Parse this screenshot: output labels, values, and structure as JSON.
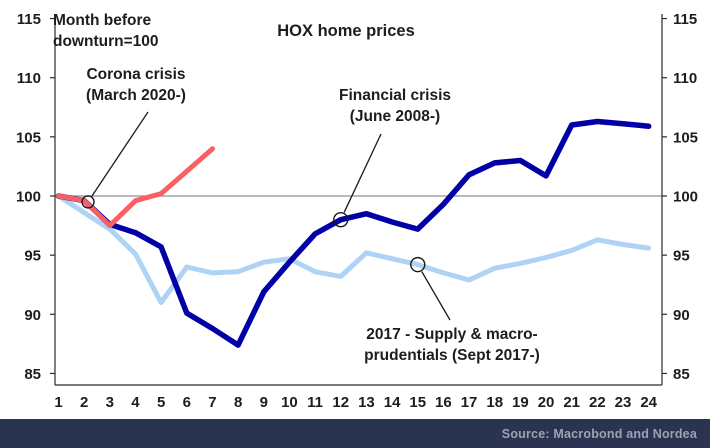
{
  "title": "HOX home prices",
  "annotations": {
    "index_note": {
      "text": "Month before\ndownturn=100"
    },
    "corona": {
      "text": "Corona crisis\n(March 2020-)"
    },
    "financial": {
      "text": "Financial crisis\n(June 2008-)"
    },
    "supply": {
      "text": "2017 - Supply & macro-\nprudentials (Sept 2017-)"
    }
  },
  "footer": {
    "source_label": "Source: Macrobond and Nordea"
  },
  "colors": {
    "corona_line": "#FA5F63",
    "financial_line": "#0000A6",
    "supply_line": "#AFD3F5",
    "grid": "#8F8F8F",
    "axis": "#2B2B2B",
    "text": "#1D1D1D",
    "leader": "#1A1A1A",
    "footer_bg": "#2A3450",
    "footer_text": "#9AA3B5"
  },
  "chart_data": {
    "type": "line",
    "xlabel": "",
    "ylabel": "",
    "x": [
      1,
      2,
      3,
      4,
      5,
      6,
      7,
      8,
      9,
      10,
      11,
      12,
      13,
      14,
      15,
      16,
      17,
      18,
      19,
      20,
      21,
      22,
      23,
      24
    ],
    "ylim": [
      85,
      115
    ],
    "y_ticks": [
      85,
      90,
      95,
      100,
      105,
      110,
      115
    ],
    "grid_value": 100,
    "legend_position": "annotations-on-chart",
    "series": [
      {
        "id": "supply-2017-line",
        "name": "2017 - Supply & macro-prudentials (Sept 2017-)",
        "color_key": "supply_line",
        "values": [
          100,
          98.6,
          97.2,
          95.1,
          91.0,
          94.0,
          93.5,
          93.6,
          94.4,
          94.7,
          93.6,
          93.2,
          95.2,
          94.7,
          94.2,
          93.5,
          92.9,
          93.9,
          94.3,
          94.8,
          95.4,
          96.3,
          95.9,
          95.6
        ]
      },
      {
        "id": "financial-crisis-line",
        "name": "Financial crisis (June 2008-)",
        "color_key": "financial_line",
        "values": [
          100,
          99.6,
          97.6,
          96.9,
          95.7,
          90.1,
          88.8,
          87.4,
          91.9,
          94.4,
          96.8,
          98.0,
          98.5,
          97.8,
          97.2,
          99.3,
          101.8,
          102.8,
          103.0,
          101.7,
          106.0,
          106.3,
          106.1,
          105.9
        ]
      },
      {
        "id": "corona-crisis-line",
        "name": "Corona crisis (March 2020-)",
        "color_key": "corona_line",
        "values": [
          100,
          99.6,
          97.5,
          99.6,
          100.2,
          102.1,
          104.0
        ]
      }
    ],
    "callouts": [
      {
        "id": "corona-callout",
        "month": 2.15,
        "value": 99.5,
        "r": 6
      },
      {
        "id": "financial-callout",
        "month": 12,
        "value": 98.0,
        "r": 7
      },
      {
        "id": "supply-callout",
        "month": 15,
        "value": 94.2,
        "r": 7
      }
    ]
  }
}
